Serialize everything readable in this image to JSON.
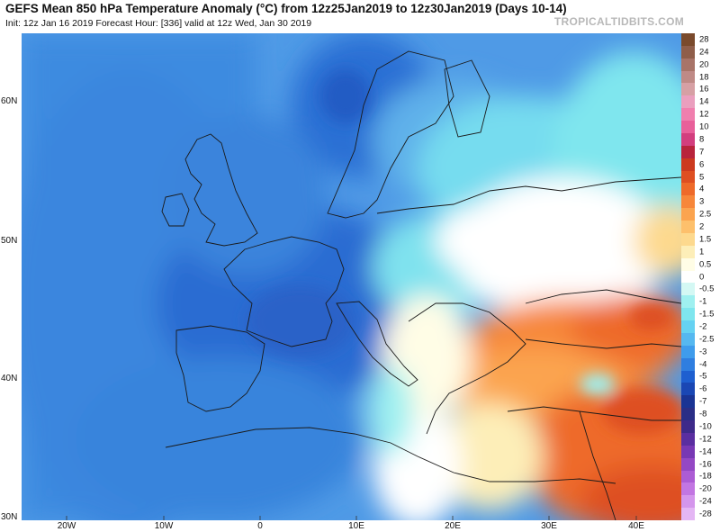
{
  "header": {
    "title": "GEFS Mean 850 hPa Temperature Anomaly (°C) from 12z25Jan2019 to 12z30Jan2019 (Days 10-14)",
    "subtitle": "Init: 12z Jan 16 2019   Forecast Hour: [336]   valid at 12z Wed, Jan 30 2019",
    "brand": "TROPICALTIDBITS.COM"
  },
  "map": {
    "lat_labels": [
      "60N",
      "50N",
      "40N",
      "30N"
    ],
    "lon_labels": [
      "20W",
      "10W",
      "0",
      "10E",
      "20E",
      "30E",
      "40E"
    ]
  },
  "colorbar": {
    "levels": [
      "28",
      "24",
      "20",
      "18",
      "16",
      "14",
      "12",
      "10",
      "8",
      "7",
      "6",
      "5",
      "4",
      "3",
      "2.5",
      "2",
      "1.5",
      "1",
      "0.5",
      "0",
      "-0.5",
      "-1",
      "-1.5",
      "-2",
      "-2.5",
      "-3",
      "-4",
      "-5",
      "-6",
      "-7",
      "-8",
      "-10",
      "-12",
      "-14",
      "-16",
      "-18",
      "-20",
      "-24",
      "-28"
    ],
    "colors": [
      "#7a4a2c",
      "#8f5e4a",
      "#a87468",
      "#bf8a86",
      "#d6a0a4",
      "#ea9fbe",
      "#f07fae",
      "#e8609a",
      "#d23e7e",
      "#b8243c",
      "#cc3a1f",
      "#de4f22",
      "#ee6a2a",
      "#f7873a",
      "#fba44f",
      "#fdc06c",
      "#fdd98e",
      "#fdeeb8",
      "#fffde6",
      "#ffffff",
      "#d4f8f4",
      "#9ff0f0",
      "#7fe6ee",
      "#66d2f2",
      "#56b8f0",
      "#3f9cec",
      "#2f7ee0",
      "#1e5fd0",
      "#1a47b4",
      "#1a3494",
      "#2a2e86",
      "#3e2a8a",
      "#5a2ea0",
      "#7838b4",
      "#9448c4",
      "#ac5cd4",
      "#c276e2",
      "#d496ec",
      "#e4b6f4"
    ]
  }
}
